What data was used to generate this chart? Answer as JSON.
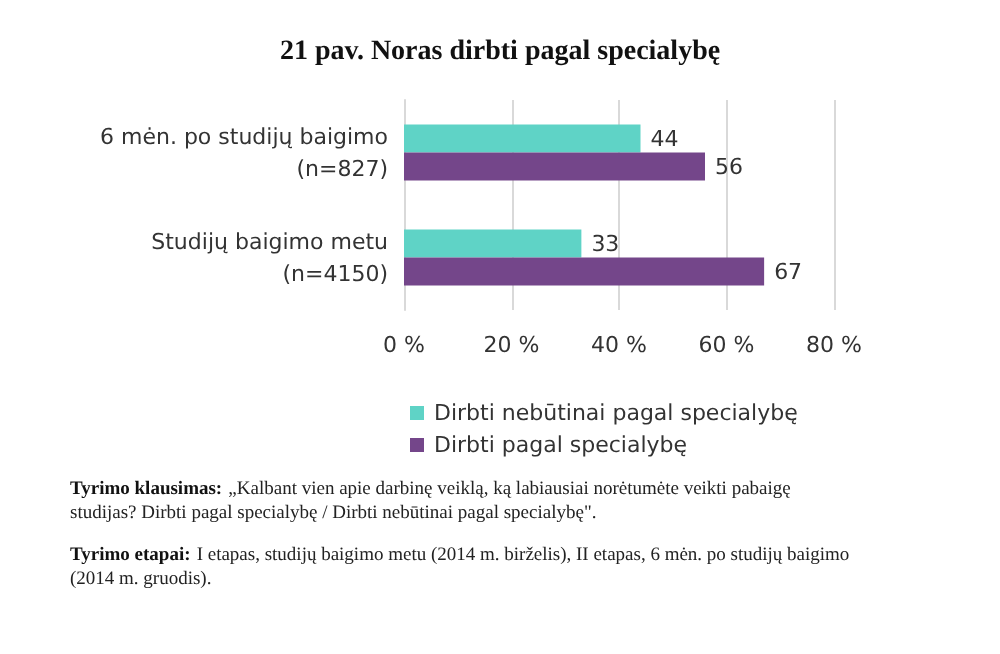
{
  "chart_data": {
    "type": "bar",
    "orientation": "horizontal",
    "title": "21 pav. Noras dirbti pagal specialybę",
    "categories": [
      "6 mėn. po studijų baigimo\n(n=827)",
      "Studijų baigimo metu\n(n=4150)"
    ],
    "series": [
      {
        "name": "Dirbti nebūtinai pagal specialybę",
        "color": "#5fd3c6",
        "values": [
          44,
          33
        ]
      },
      {
        "name": "Dirbti pagal specialybę",
        "color": "#74468a",
        "values": [
          56,
          67
        ]
      }
    ],
    "xlim": [
      0,
      80
    ],
    "xticks": [
      {
        "value": 0,
        "label": "0 %"
      },
      {
        "value": 20,
        "label": "20 %"
      },
      {
        "value": 40,
        "label": "40 %"
      },
      {
        "value": 60,
        "label": "60 %"
      },
      {
        "value": 80,
        "label": "80 %"
      }
    ],
    "grid": "x",
    "legend": "bottom",
    "data_labels": true,
    "annotations": [
      "Tyrimo klausimas: „Kalbant vien apie darbinę veiklą, ką labiausiai norėtumėte veikti pabaigę studijas? Dirbti pagal specialybę / Dirbti nebūtinai pagal specialybę\".",
      "Tyrimo etapai: I etapas, studijų baigimo metu (2014 m. birželis), II etapas, 6 mėn. po studijų baigimo (2014 m. gruodis)."
    ]
  }
}
